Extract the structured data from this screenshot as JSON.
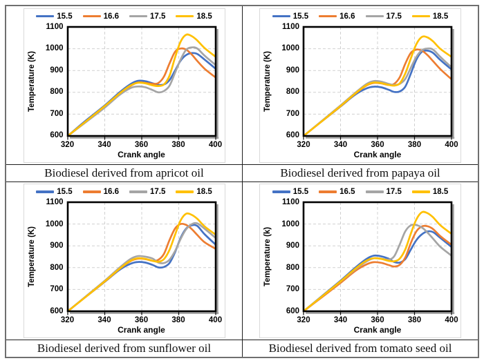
{
  "accent_colors": {
    "blue": "#4472C4",
    "orange": "#ED7D31",
    "gray": "#A5A5A5",
    "yellow": "#FFC000"
  },
  "chart_data": [
    {
      "type": "line",
      "caption": "Biodiesel derived from apricot oil",
      "xlabel": "Crank angle",
      "ylabel": "Temperature (K)",
      "xlim": [
        320,
        400
      ],
      "ylim": [
        600,
        1100
      ],
      "x_ticks": [
        320,
        340,
        360,
        380,
        400
      ],
      "y_ticks": [
        600,
        700,
        800,
        900,
        1000,
        1100
      ],
      "x_grid": [
        340,
        360,
        380
      ],
      "y_grid": [
        700,
        800,
        900,
        1000
      ],
      "grid": true,
      "legend_position": "top",
      "x": [
        320,
        330,
        340,
        348,
        354,
        358,
        362,
        366,
        369,
        372,
        375,
        378,
        381,
        384,
        387,
        390,
        394,
        400
      ],
      "series": [
        {
          "name": "15.5",
          "color": "#4472C4",
          "y": [
            600,
            672,
            740,
            800,
            838,
            853,
            851,
            841,
            834,
            836,
            856,
            900,
            945,
            971,
            980,
            976,
            950,
            908
          ]
        },
        {
          "name": "16.6",
          "color": "#ED7D31",
          "y": [
            600,
            668,
            735,
            793,
            830,
            845,
            843,
            839,
            843,
            872,
            932,
            986,
            1001,
            996,
            974,
            944,
            908,
            868
          ]
        },
        {
          "name": "17.5",
          "color": "#A5A5A5",
          "y": [
            600,
            665,
            730,
            788,
            820,
            827,
            823,
            810,
            800,
            806,
            830,
            890,
            950,
            995,
            1006,
            1001,
            968,
            925
          ]
        },
        {
          "name": "18.5",
          "color": "#FFC000",
          "y": [
            600,
            668,
            737,
            795,
            832,
            844,
            841,
            832,
            829,
            836,
            876,
            960,
            1032,
            1064,
            1058,
            1038,
            1003,
            963
          ]
        }
      ]
    },
    {
      "type": "line",
      "caption": "Biodiesel derived from papaya oil",
      "xlabel": "Crank angle",
      "ylabel": "Temperature (K)",
      "xlim": [
        320,
        400
      ],
      "ylim": [
        600,
        1100
      ],
      "x_ticks": [
        320,
        340,
        360,
        380,
        400
      ],
      "y_ticks": [
        600,
        700,
        800,
        900,
        1000,
        1100
      ],
      "x_grid": [
        340,
        360,
        380
      ],
      "y_grid": [
        700,
        800,
        900,
        1000
      ],
      "grid": true,
      "legend_position": "top",
      "x": [
        320,
        330,
        340,
        348,
        354,
        358,
        362,
        366,
        369,
        372,
        375,
        378,
        381,
        384,
        387,
        390,
        394,
        400
      ],
      "series": [
        {
          "name": "15.5",
          "color": "#4472C4",
          "y": [
            600,
            668,
            735,
            790,
            818,
            826,
            823,
            812,
            802,
            804,
            826,
            886,
            950,
            986,
            991,
            981,
            948,
            905
          ]
        },
        {
          "name": "16.6",
          "color": "#ED7D31",
          "y": [
            600,
            668,
            736,
            794,
            831,
            843,
            841,
            834,
            839,
            869,
            931,
            981,
            996,
            991,
            971,
            943,
            906,
            860
          ]
        },
        {
          "name": "17.5",
          "color": "#A5A5A5",
          "y": [
            600,
            670,
            740,
            798,
            838,
            852,
            849,
            839,
            834,
            839,
            861,
            913,
            963,
            993,
            1001,
            996,
            962,
            915
          ]
        },
        {
          "name": "18.5",
          "color": "#FFC000",
          "y": [
            600,
            668,
            737,
            795,
            833,
            845,
            842,
            834,
            831,
            841,
            886,
            956,
            1021,
            1054,
            1052,
            1034,
            999,
            963
          ]
        }
      ]
    },
    {
      "type": "line",
      "caption": "Biodiesel derived from sunflower oil",
      "xlabel": "Crank angle",
      "ylabel": "Temperature (K)",
      "xlim": [
        320,
        400
      ],
      "ylim": [
        600,
        1100
      ],
      "x_ticks": [
        320,
        340,
        360,
        380,
        400
      ],
      "y_ticks": [
        600,
        700,
        800,
        900,
        1000,
        1100
      ],
      "x_grid": [
        340,
        360,
        380
      ],
      "y_grid": [
        700,
        800,
        900,
        1000
      ],
      "grid": true,
      "legend_position": "top",
      "x": [
        320,
        330,
        340,
        348,
        354,
        358,
        362,
        366,
        369,
        372,
        375,
        378,
        381,
        384,
        387,
        390,
        394,
        400
      ],
      "series": [
        {
          "name": "15.5",
          "color": "#4472C4",
          "y": [
            600,
            668,
            735,
            790,
            818,
            826,
            823,
            812,
            801,
            803,
            821,
            871,
            936,
            979,
            994,
            991,
            953,
            905
          ]
        },
        {
          "name": "16.6",
          "color": "#ED7D31",
          "y": [
            600,
            668,
            736,
            794,
            830,
            841,
            839,
            831,
            836,
            863,
            926,
            979,
            1000,
            996,
            977,
            950,
            916,
            886
          ]
        },
        {
          "name": "17.5",
          "color": "#A5A5A5",
          "y": [
            600,
            670,
            740,
            800,
            840,
            853,
            850,
            841,
            823,
            821,
            836,
            876,
            931,
            976,
            999,
            1003,
            978,
            936
          ]
        },
        {
          "name": "18.5",
          "color": "#FFC000",
          "y": [
            600,
            668,
            737,
            795,
            832,
            843,
            840,
            831,
            827,
            839,
            881,
            951,
            1016,
            1047,
            1042,
            1024,
            989,
            951
          ]
        }
      ]
    },
    {
      "type": "line",
      "caption": "Biodiesel derived from tomato seed oil",
      "xlabel": "Crank angle",
      "ylabel": "Temperature (k)",
      "xlim": [
        320,
        400
      ],
      "ylim": [
        600,
        1100
      ],
      "x_ticks": [
        320,
        340,
        360,
        380,
        400
      ],
      "y_ticks": [
        600,
        700,
        800,
        900,
        1000,
        1100
      ],
      "x_grid": [
        340,
        360,
        380
      ],
      "y_grid": [
        700,
        800,
        900,
        1000
      ],
      "grid": true,
      "legend_position": "top",
      "x": [
        320,
        330,
        340,
        348,
        354,
        358,
        362,
        366,
        369,
        372,
        375,
        378,
        381,
        384,
        387,
        390,
        394,
        400
      ],
      "series": [
        {
          "name": "15.5",
          "color": "#4472C4",
          "y": [
            600,
            670,
            740,
            800,
            840,
            855,
            852,
            841,
            826,
            823,
            839,
            883,
            926,
            953,
            966,
            963,
            936,
            895
          ]
        },
        {
          "name": "16.5",
          "color": "#ED7D31",
          "y": [
            600,
            665,
            730,
            785,
            815,
            825,
            822,
            812,
            805,
            813,
            846,
            913,
            966,
            989,
            990,
            977,
            944,
            905
          ]
        },
        {
          "name": "17.5",
          "color": "#A5A5A5",
          "y": [
            600,
            668,
            736,
            792,
            828,
            843,
            841,
            837,
            852,
            906,
            966,
            994,
            995,
            984,
            961,
            933,
            895,
            855
          ]
        },
        {
          "name": "18.5",
          "color": "#FFC000",
          "y": [
            600,
            668,
            737,
            795,
            832,
            843,
            840,
            831,
            829,
            841,
            883,
            956,
            1021,
            1054,
            1050,
            1031,
            994,
            955
          ]
        }
      ]
    }
  ]
}
